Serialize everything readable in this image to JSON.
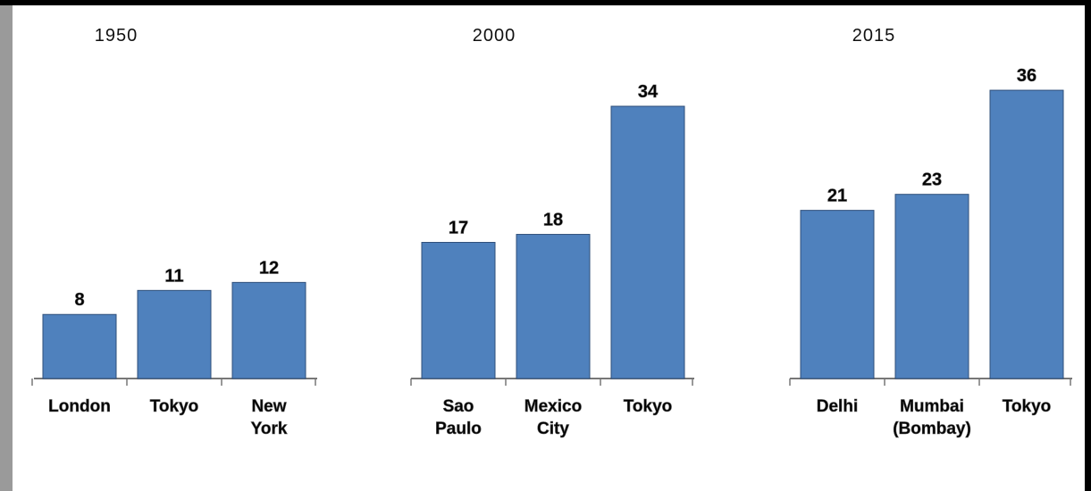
{
  "chart_data": {
    "type": "bar",
    "groups": [
      {
        "label": "1950",
        "bars": [
          {
            "category": [
              "London"
            ],
            "value": 8
          },
          {
            "category": [
              "Tokyo"
            ],
            "value": 11
          },
          {
            "category": [
              "New",
              "York"
            ],
            "value": 12
          }
        ]
      },
      {
        "label": "2000",
        "bars": [
          {
            "category": [
              "Sao",
              "Paulo"
            ],
            "value": 17
          },
          {
            "category": [
              "Mexico",
              "City"
            ],
            "value": 18
          },
          {
            "category": [
              "Tokyo"
            ],
            "value": 34
          }
        ]
      },
      {
        "label": "2015",
        "bars": [
          {
            "category": [
              "Delhi"
            ],
            "value": 21
          },
          {
            "category": [
              "Mumbai",
              "(Bombay)"
            ],
            "value": 23
          },
          {
            "category": [
              "Tokyo"
            ],
            "value": 36
          }
        ]
      }
    ],
    "ylim": [
      0,
      40
    ],
    "grid": false,
    "legend": "none",
    "bar_color": "#4f81bd"
  }
}
